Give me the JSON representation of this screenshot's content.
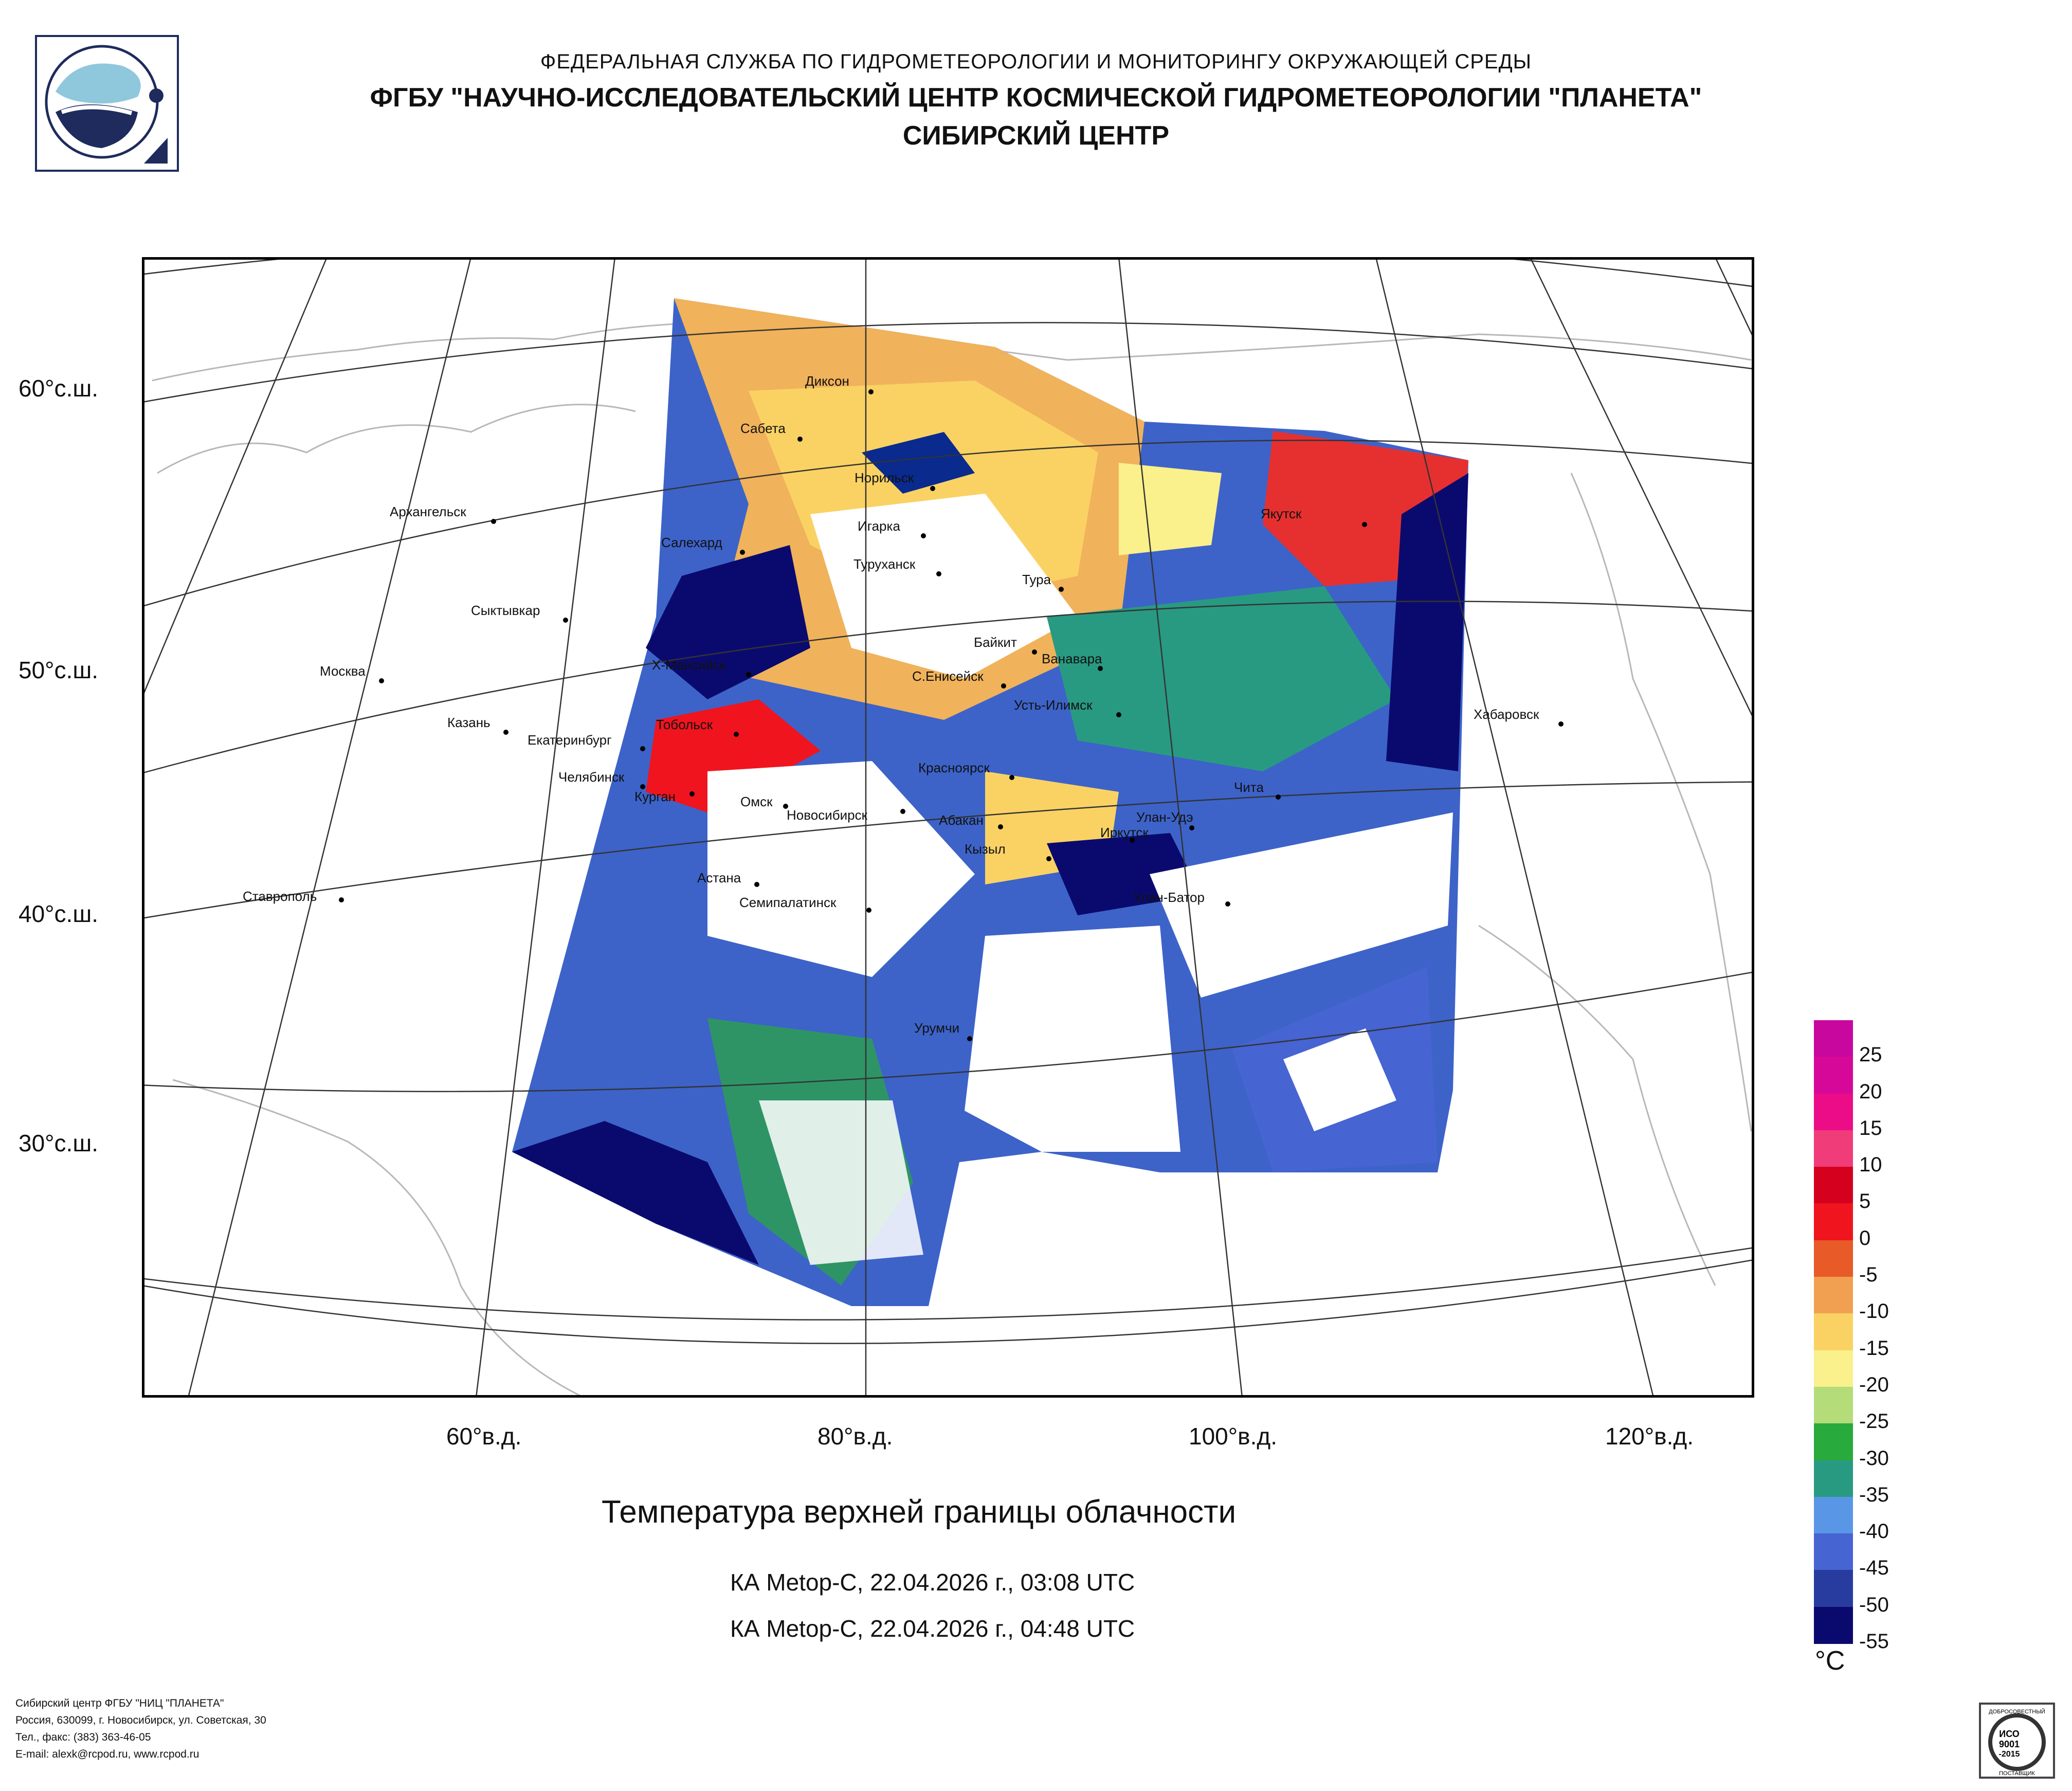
{
  "header": {
    "line1": "ФЕДЕРАЛЬНАЯ СЛУЖБА ПО ГИДРОМЕТЕОРОЛОГИИ И МОНИТОРИНГУ ОКРУЖАЮЩЕЙ СРЕДЫ",
    "line2": "ФГБУ \"НАУЧНО-ИССЛЕДОВАТЕЛЬСКИЙ ЦЕНТР КОСМИЧЕСКОЙ ГИДРОМЕТЕОРОЛОГИИ \"ПЛАНЕТА\"",
    "line3": "СИБИРСКИЙ ЦЕНТР"
  },
  "map": {
    "lat_labels": [
      "60°с.ш.",
      "50°с.ш.",
      "40°с.ш.",
      "30°с.ш."
    ],
    "lon_labels": [
      "60°в.д.",
      "80°в.д.",
      "100°в.д.",
      "120°в.д."
    ],
    "cities": {
      "dikson": "Диксон",
      "sabeta": "Сабета",
      "norilsk": "Норильск",
      "yakutsk": "Якутск",
      "igarka": "Игарка",
      "arkhangelsk": "Архангельск",
      "salekhard": "Салехард",
      "turukhansk": "Туруханск",
      "tura": "Тура",
      "syktyvkar": "Сыктывкар",
      "baikit": "Байкит",
      "vanavara": "Ванавара",
      "moscow": "Москва",
      "khmansiysk": "Х-Мансийск",
      "s_eniseysk": "С.Енисейск",
      "ust_ilimsk": "Усть-Илимск",
      "khabarovsk": "Хабаровск",
      "kazan": "Казань",
      "tobolsk": "Тобольск",
      "ekaterinburg": "Екатеринбург",
      "krasnoyarsk": "Красноярск",
      "chelyabinsk": "Челябинск",
      "chita": "Чита",
      "kurgan": "Курган",
      "omsk": "Омск",
      "novosibirsk": "Новосибирск",
      "abakan": "Абакан",
      "ulan_ude": "Улан-Удэ",
      "irkutsk": "Иркутск",
      "kyzyl": "Кызыл",
      "astana": "Астана",
      "stavropol": "Ставрополь",
      "semipalatinsk": "Семипалатинск",
      "ulan_bator": "Улан-Батор",
      "urumqi": "Урумчи"
    }
  },
  "title": "Температура верхней границы облачности",
  "subtitle1": "КА Metop-C, 22.04.2026 г., 03:08 UTC",
  "subtitle2": "КА Metop-C, 22.04.2026 г., 04:48 UTC",
  "legend": {
    "unit": "°С",
    "ticks": [
      "25",
      "20",
      "15",
      "10",
      "5",
      "0",
      "-5",
      "-10",
      "-15",
      "-20",
      "-25",
      "-30",
      "-35",
      "-40",
      "-45",
      "-50",
      "-55"
    ],
    "colors": [
      "#c8079e",
      "#d6089a",
      "#ec0c88",
      "#f03c78",
      "#d4001e",
      "#f0141e",
      "#e85a28",
      "#f0a050",
      "#fad264",
      "#faf08c",
      "#b4dc78",
      "#28aa3c",
      "#289a82",
      "#5a96e6",
      "#4664d2",
      "#283ca0",
      "#0a0a6e"
    ]
  },
  "footer": {
    "line1": "Сибирский центр ФГБУ \"НИЦ \"ПЛАНЕТА\"",
    "line2": "Россия, 630099, г. Новосибирск, ул. Советская, 30",
    "line3": "Тел., факс: (383) 363-46-05",
    "line4": "E-mail: alexk@rcpod.ru, www.rcpod.ru"
  },
  "iso_badge": {
    "top_text": "ДОБРОСОВЕСТНЫЙ",
    "mid1": "ИСО",
    "mid2": "9001",
    "mid3": "-2015",
    "bottom_text": "ПОСТАВЩИК"
  }
}
